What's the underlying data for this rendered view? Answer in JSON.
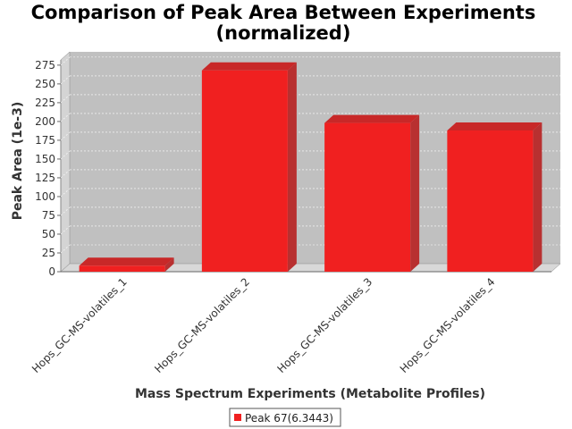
{
  "chart_data": {
    "type": "bar",
    "title": "Comparison of Peak Area Between Experiments",
    "subtitle": "(normalized)",
    "xlabel": "Mass Spectrum Experiments (Metabolite Profiles)",
    "ylabel": "Peak Area (1e-3)",
    "categories": [
      "Hops_GC-MS-volatiles_1",
      "Hops_GC-MS-volatiles_2",
      "Hops_GC-MS-volatiles_3",
      "Hops_GC-MS-volatiles_4"
    ],
    "series": [
      {
        "name": "Peak 67(6.3443)",
        "values": [
          8,
          268,
          198,
          188
        ],
        "color": "#f02020"
      }
    ],
    "ylim": [
      0,
      282
    ],
    "yticks": [
      "0",
      "25",
      "50",
      "75",
      "100",
      "125",
      "150",
      "175",
      "200",
      "225",
      "250",
      "275"
    ],
    "grid": true,
    "legend": "bottom",
    "plot_background": "#c0c0c0"
  }
}
